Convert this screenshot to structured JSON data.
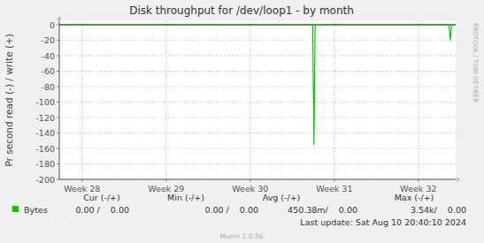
{
  "chart_data": {
    "type": "line",
    "title": "Disk throughput for /dev/loop1 - by month",
    "y_label": "Pr second read (-) / write (+)",
    "watermark": "RRDTOOL / TOBI OETIKER",
    "x": [
      0,
      21.1,
      21.2,
      21.3,
      32.45,
      32.55,
      32.65,
      32.85
    ],
    "series": [
      {
        "name": "Bytes",
        "color": "#00cc00",
        "values": [
          0,
          0,
          -155,
          0,
          0,
          -20,
          0,
          0
        ]
      }
    ],
    "xlim": [
      0,
      33
    ],
    "xticks": [
      {
        "value": 1.9,
        "label": "Week 28"
      },
      {
        "value": 8.9,
        "label": "Week 29"
      },
      {
        "value": 15.9,
        "label": "Week 30"
      },
      {
        "value": 22.9,
        "label": "Week 31"
      },
      {
        "value": 29.9,
        "label": "Week 32"
      }
    ],
    "ylim": [
      -200,
      5
    ],
    "yticks": [
      0,
      -20,
      -40,
      -60,
      -80,
      -100,
      -120,
      -140,
      -160,
      -180,
      -200
    ],
    "grid": true,
    "legend": "bottom",
    "summary": {
      "headers": [
        "Cur (-/+)",
        "Min (-/+)",
        "Avg (-/+)",
        "Max (-/+)"
      ],
      "rows": [
        [
          "0.00 /    0.00",
          "0.00 /    0.00",
          "450.38m/    0.00",
          "3.54k/    0.00"
        ]
      ]
    },
    "last_update": "Last update: Sat Aug 10 20:40:10 2024",
    "footer": "Munin 2.0.56"
  }
}
